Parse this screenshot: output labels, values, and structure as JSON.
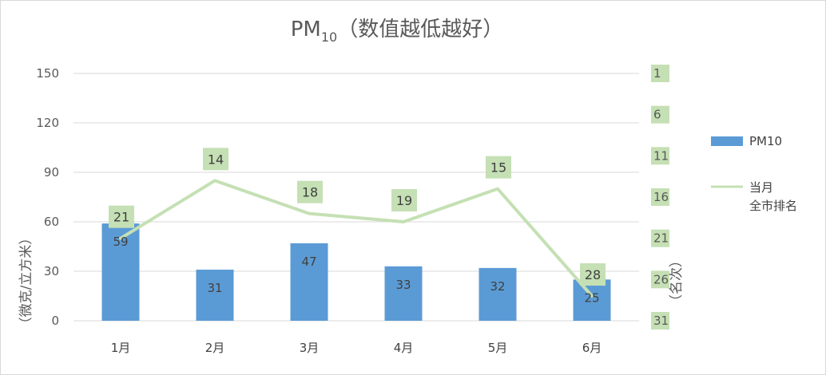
{
  "chart_data": {
    "type": "bar",
    "title_main": "PM",
    "title_sub": "10",
    "title_rest": "（数值越低越好）",
    "categories": [
      "1月",
      "2月",
      "3月",
      "4月",
      "5月",
      "6月"
    ],
    "ylabel_left": "（微克/立方米）",
    "ylabel_right": "（名次）",
    "ylim_left": [
      0,
      150
    ],
    "yticks_left": [
      "150",
      "120",
      "90",
      "60",
      "30",
      "0"
    ],
    "yticks_right": [
      "1",
      "6",
      "11",
      "16",
      "21",
      "26",
      "31"
    ],
    "ylim_right": [
      1,
      31
    ],
    "right_axis_inverted": true,
    "grid": true,
    "series": [
      {
        "name": "PM10",
        "type": "bar",
        "color": "#5b9bd5",
        "values": [
          59,
          31,
          47,
          33,
          32,
          25
        ]
      },
      {
        "name": "当月\n全市排名",
        "legend_lines": [
          "当月",
          "全市排名"
        ],
        "type": "line",
        "axis": "right",
        "color": "#c5e0b4",
        "values": [
          21,
          14,
          18,
          19,
          15,
          28
        ]
      }
    ],
    "legend_position": "right",
    "label_bg_color": "#c5e0b4"
  }
}
